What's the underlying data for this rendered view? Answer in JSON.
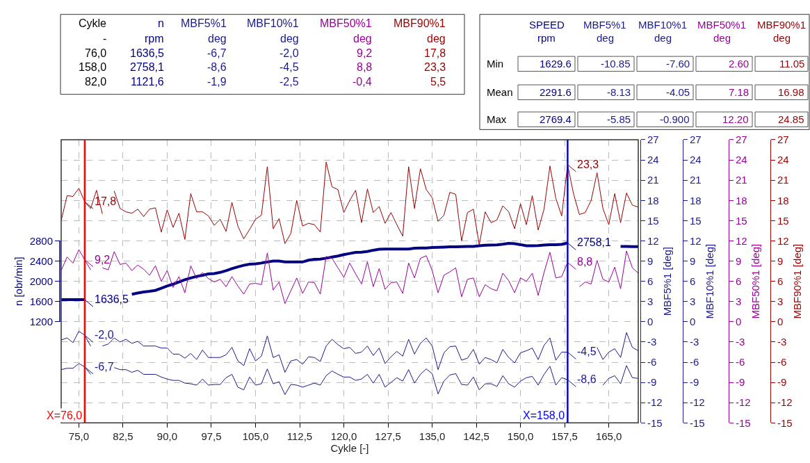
{
  "chart_data": {
    "type": "line",
    "x": [
      72,
      73,
      74,
      75,
      76,
      77,
      78,
      79,
      80,
      81,
      82,
      83,
      84,
      85,
      86,
      87,
      88,
      89,
      90,
      91,
      92,
      93,
      94,
      95,
      96,
      97,
      98,
      99,
      100,
      101,
      102,
      103,
      104,
      105,
      106,
      107,
      108,
      109,
      110,
      111,
      112,
      113,
      114,
      115,
      116,
      117,
      118,
      119,
      120,
      121,
      122,
      123,
      124,
      125,
      126,
      127,
      128,
      129,
      130,
      131,
      132,
      133,
      134,
      135,
      136,
      137,
      138,
      139,
      140,
      141,
      142,
      143,
      144,
      145,
      146,
      147,
      148,
      149,
      150,
      151,
      152,
      153,
      154,
      155,
      156,
      157,
      158,
      159,
      160,
      161,
      162,
      163,
      164,
      165,
      166,
      167,
      168,
      169,
      170
    ],
    "series": [
      {
        "axis": "y",
        "color": "#000080",
        "values": [
          1636.5,
          1636.5,
          1636.5,
          1636.5,
          1636.5,
          null,
          null,
          null,
          null,
          null,
          null,
          null,
          1745,
          1767,
          1789,
          1802,
          1820,
          1864,
          1908,
          1943,
          1987,
          2031,
          2066,
          2097,
          2119,
          2145,
          2154,
          2176,
          2210,
          2250,
          2286,
          2317,
          2339,
          2347,
          2361,
          2382,
          2400,
          2400,
          2382,
          2382,
          2382,
          2382,
          2418,
          2435,
          2440,
          2457,
          2479,
          2501,
          2528,
          2550,
          2572,
          2576,
          2589,
          2615,
          2633,
          2637,
          2637,
          2637,
          2637,
          2637,
          2655,
          2659,
          2659,
          2668,
          2672,
          2677,
          2681,
          2681,
          2685,
          2690,
          2690,
          2703,
          2712,
          2716,
          2721,
          2734,
          2752,
          2743,
          2725,
          2703,
          2703,
          2708,
          2716,
          2725,
          2725,
          2730,
          2758.1,
          null,
          null,
          null,
          null,
          null,
          null,
          null,
          null,
          2690,
          2690,
          2685,
          2685
        ],
        "value_labels": [
          null,
          null,
          null,
          null,
          "1636,5",
          null,
          null,
          null,
          null,
          null,
          null,
          null,
          null,
          null,
          null,
          null,
          null,
          null,
          null,
          null,
          null,
          null,
          null,
          null,
          null,
          null,
          null,
          null,
          null,
          null,
          null,
          null,
          null,
          null,
          null,
          null,
          null,
          null,
          null,
          null,
          null,
          null,
          null,
          null,
          null,
          null,
          null,
          null,
          null,
          null,
          null,
          null,
          null,
          null,
          null,
          null,
          null,
          null,
          null,
          null,
          null,
          null,
          null,
          null,
          null,
          null,
          null,
          null,
          null,
          null,
          null,
          null,
          null,
          null,
          null,
          null,
          null,
          null,
          null,
          null,
          null,
          null,
          null,
          null,
          null,
          null,
          "2758,1",
          null,
          null,
          null,
          null,
          null,
          null,
          null,
          null,
          null,
          null,
          null,
          null
        ]
      },
      {
        "axis": "y2",
        "color": "#1a1a8c",
        "values": [
          -7.1,
          -6.9,
          -6.9,
          -6.2,
          -6.7,
          -7.8,
          null,
          null,
          null,
          -6.8,
          -7.1,
          -7.1,
          -7.5,
          -7.2,
          -7.8,
          -7.8,
          -7.8,
          -8.2,
          -8.5,
          -8.7,
          -8.7,
          -9.1,
          -9.2,
          -9.4,
          -8.5,
          -9.4,
          -9.3,
          -9.3,
          -8.3,
          -7.8,
          -9.7,
          -10.1,
          -8.2,
          -9.4,
          -9.2,
          -7.0,
          -9.2,
          -8.9,
          -10.8,
          -9.3,
          -9.4,
          -9.7,
          -9.4,
          -9.1,
          -9.4,
          -8.0,
          -7.3,
          -7.8,
          -8.2,
          -8.2,
          -8.7,
          -8.5,
          -7.8,
          -9.1,
          -7.8,
          -9.7,
          -9.0,
          -8.3,
          -8.8,
          -7.1,
          -9.1,
          -7.8,
          -7.0,
          -7.7,
          -10.7,
          -8.8,
          -7.9,
          -7.7,
          -9.3,
          -9.4,
          -8.2,
          -10.1,
          -9.2,
          -9.2,
          -9.6,
          -8.0,
          -9.2,
          -9.7,
          -8.8,
          -8.3,
          -8.1,
          -9.4,
          -7.8,
          -6.6,
          -9.4,
          -8.3,
          -8.6,
          null,
          null,
          null,
          null,
          null,
          -9.4,
          -8.4,
          -8.0,
          -9.2,
          -6.5,
          -8.3,
          -8.4
        ],
        "value_labels": [
          null,
          null,
          null,
          null,
          "-6,7",
          null,
          null,
          null,
          null,
          null,
          null,
          null,
          null,
          null,
          null,
          null,
          null,
          null,
          null,
          null,
          null,
          null,
          null,
          null,
          null,
          null,
          null,
          null,
          null,
          null,
          null,
          null,
          null,
          null,
          null,
          null,
          null,
          null,
          null,
          null,
          null,
          null,
          null,
          null,
          null,
          null,
          null,
          null,
          null,
          null,
          null,
          null,
          null,
          null,
          null,
          null,
          null,
          null,
          null,
          null,
          null,
          null,
          null,
          null,
          null,
          null,
          null,
          null,
          null,
          null,
          null,
          null,
          null,
          null,
          null,
          null,
          null,
          null,
          null,
          null,
          null,
          null,
          null,
          null,
          null,
          null,
          "-8,6",
          null,
          null,
          null,
          null,
          null,
          null,
          null,
          null,
          null,
          null,
          null,
          null
        ]
      },
      {
        "axis": "y3",
        "color": "#1a1a8c",
        "values": [
          -2.7,
          -2.4,
          -3.1,
          -1.4,
          -2.0,
          -3.6,
          null,
          -3.6,
          -3.3,
          -2.4,
          -3.0,
          -2.6,
          -3.2,
          -2.9,
          -3.6,
          -3.6,
          -3.6,
          -3.9,
          -3.9,
          -4.8,
          -4.8,
          -5.4,
          -4.7,
          -5.6,
          -4.2,
          -5.3,
          -5.3,
          -5.3,
          -4.9,
          -3.8,
          -5.8,
          -6.5,
          -4.0,
          -5.8,
          -5.1,
          -2.1,
          -5.3,
          -4.9,
          -7.5,
          -5.8,
          -5.6,
          -6.3,
          -5.2,
          -5.3,
          -5.9,
          -3.6,
          -2.6,
          -3.4,
          -4.0,
          -3.8,
          -4.7,
          -4.5,
          -3.6,
          -5.0,
          -3.9,
          -6.2,
          -5.2,
          -4.4,
          -5.1,
          -2.6,
          -4.8,
          -3.2,
          -2.4,
          -3.6,
          -7.1,
          -4.6,
          -3.7,
          -3.6,
          -5.7,
          -5.4,
          -4.1,
          -6.3,
          -5.3,
          -5.6,
          -6.1,
          -4.1,
          -5.3,
          -6.1,
          -4.6,
          -4.3,
          -3.9,
          -5.6,
          -3.5,
          -2.4,
          -5.7,
          -4.5,
          -4.5,
          null,
          null,
          null,
          null,
          -3.8,
          -5.6,
          -4.5,
          -4.0,
          -5.3,
          -1.6,
          -3.8,
          -4.3
        ],
        "value_labels": [
          null,
          null,
          null,
          null,
          "-2,0",
          null,
          null,
          null,
          null,
          null,
          null,
          null,
          null,
          null,
          null,
          null,
          null,
          null,
          null,
          null,
          null,
          null,
          null,
          null,
          null,
          null,
          null,
          null,
          null,
          null,
          null,
          null,
          null,
          null,
          null,
          null,
          null,
          null,
          null,
          null,
          null,
          null,
          null,
          null,
          null,
          null,
          null,
          null,
          null,
          null,
          null,
          null,
          null,
          null,
          null,
          null,
          null,
          null,
          null,
          null,
          null,
          null,
          null,
          null,
          null,
          null,
          null,
          null,
          null,
          null,
          null,
          null,
          null,
          null,
          null,
          null,
          null,
          null,
          null,
          null,
          null,
          null,
          null,
          null,
          null,
          null,
          "-4,5",
          null,
          null,
          null,
          null,
          null,
          null,
          null,
          null,
          null,
          null,
          null,
          null
        ]
      },
      {
        "axis": "y3",
        "color": "#990099",
        "values": [
          7.6,
          9.6,
          8.7,
          10.7,
          9.2,
          7.7,
          null,
          8.0,
          7.7,
          10.4,
          8.5,
          8.7,
          7.6,
          8.4,
          7.8,
          6.9,
          8.3,
          6.0,
          7.6,
          5.1,
          6.7,
          4.3,
          8.3,
          6.4,
          7.3,
          6.4,
          5.9,
          6.3,
          5.2,
          6.7,
          5.3,
          4.1,
          5.6,
          5.7,
          5.5,
          10.2,
          4.7,
          5.9,
          2.7,
          4.6,
          6.5,
          4.2,
          5.9,
          5.8,
          4.1,
          9.7,
          9.4,
          8.0,
          6.6,
          8.7,
          7.1,
          5.6,
          8.9,
          5.2,
          7.9,
          4.8,
          5.8,
          5.9,
          4.2,
          8.7,
          6.5,
          9.4,
          9.8,
          7.6,
          4.3,
          6.9,
          7.4,
          8.0,
          3.7,
          6.3,
          6.5,
          3.7,
          5.5,
          4.9,
          4.6,
          7.2,
          6.1,
          4.3,
          6.5,
          6.0,
          7.2,
          3.9,
          7.3,
          10.3,
          6.5,
          6.7,
          8.8,
          null,
          5.2,
          5.9,
          5.6,
          9.1,
          6.3,
          5.9,
          8.1,
          4.9,
          10.5,
          8.0,
          7.2
        ],
        "value_labels": [
          null,
          null,
          null,
          null,
          "9,2",
          null,
          null,
          null,
          null,
          null,
          null,
          null,
          null,
          null,
          null,
          null,
          null,
          null,
          null,
          null,
          null,
          null,
          null,
          null,
          null,
          null,
          null,
          null,
          null,
          null,
          null,
          null,
          null,
          null,
          null,
          null,
          null,
          null,
          null,
          null,
          null,
          null,
          null,
          null,
          null,
          null,
          null,
          null,
          null,
          null,
          null,
          null,
          null,
          null,
          null,
          null,
          null,
          null,
          null,
          null,
          null,
          null,
          null,
          null,
          null,
          null,
          null,
          null,
          null,
          null,
          null,
          null,
          null,
          null,
          null,
          null,
          null,
          null,
          null,
          null,
          null,
          null,
          null,
          null,
          null,
          null,
          "8,8",
          null,
          null,
          null,
          null,
          null,
          null,
          null,
          null,
          null,
          null,
          null,
          null
        ]
      },
      {
        "axis": "y3",
        "color": "#990000",
        "values": [
          15.0,
          18.7,
          18.6,
          19.8,
          17.8,
          16.8,
          19.5,
          16.0,
          null,
          19.4,
          16.8,
          16.3,
          16.1,
          16.7,
          15.6,
          16.7,
          16.9,
          13.3,
          16.6,
          14.0,
          16.1,
          12.2,
          19.0,
          16.3,
          16.3,
          15.7,
          14.3,
          15.2,
          13.4,
          17.7,
          14.2,
          12.3,
          13.7,
          15.2,
          15.8,
          23.0,
          13.8,
          15.3,
          11.6,
          13.1,
          18.0,
          14.2,
          14.6,
          14.4,
          13.3,
          23.7,
          20.0,
          19.6,
          16.2,
          18.0,
          19.5,
          14.7,
          19.7,
          16.2,
          17.1,
          14.6,
          16.2,
          14.4,
          12.7,
          23.0,
          16.8,
          22.7,
          19.6,
          18.4,
          14.9,
          15.8,
          19.2,
          18.9,
          12.0,
          16.2,
          16.7,
          11.4,
          16.3,
          14.7,
          15.1,
          17.2,
          16.3,
          13.8,
          17.5,
          14.4,
          18.7,
          13.6,
          16.7,
          23.1,
          18.3,
          15.7,
          23.3,
          19.0,
          15.9,
          16.2,
          18.0,
          22.1,
          16.8,
          14.4,
          19.0,
          14.7,
          19.1,
          17.3,
          17.0
        ],
        "value_labels": [
          null,
          null,
          null,
          null,
          "17,8",
          null,
          null,
          null,
          null,
          null,
          null,
          null,
          null,
          null,
          null,
          null,
          null,
          null,
          null,
          null,
          null,
          null,
          null,
          null,
          null,
          null,
          null,
          null,
          null,
          null,
          null,
          null,
          null,
          null,
          null,
          null,
          null,
          null,
          null,
          null,
          null,
          null,
          null,
          null,
          null,
          null,
          null,
          null,
          null,
          null,
          null,
          null,
          null,
          null,
          null,
          null,
          null,
          null,
          null,
          null,
          null,
          null,
          null,
          null,
          null,
          null,
          null,
          null,
          null,
          null,
          null,
          null,
          null,
          null,
          null,
          null,
          null,
          null,
          null,
          null,
          null,
          null,
          null,
          null,
          null,
          null,
          "23,3",
          null,
          null,
          null,
          null,
          null,
          null,
          null,
          null,
          null,
          null,
          null,
          null
        ]
      }
    ],
    "xlabel": "Cykle [-]",
    "xlim": [
      72,
      170
    ],
    "xticks": [
      {
        "value": 75,
        "label": "75,0"
      },
      {
        "value": 82.5,
        "label": "82,5"
      },
      {
        "value": 90,
        "label": "90,0"
      },
      {
        "value": 97.5,
        "label": "97,5"
      },
      {
        "value": 105,
        "label": "105,0"
      },
      {
        "value": 112.5,
        "label": "112,5"
      },
      {
        "value": 120,
        "label": "120,0"
      },
      {
        "value": 127.5,
        "label": "127,5"
      },
      {
        "value": 135,
        "label": "135,0"
      },
      {
        "value": 142.5,
        "label": "142,5"
      },
      {
        "value": 150,
        "label": "150,0"
      },
      {
        "value": 157.5,
        "label": "157,5"
      },
      {
        "value": 165,
        "label": "165,0"
      }
    ],
    "ylabel": "n [obr/min]",
    "ylim": [
      -800,
      4800
    ],
    "yticks": [
      1200,
      1600,
      2000,
      2400,
      2800
    ],
    "y2label": "MBF5%1 [deg]",
    "y2lim": [
      -15,
      27
    ],
    "y2ticks": [
      -15,
      -12,
      -9,
      -6,
      -3,
      0,
      3,
      6,
      9,
      12,
      15,
      18,
      21,
      24,
      27
    ],
    "y3label": "MBF10%1 [deg]",
    "y3lim": [
      -15,
      27
    ],
    "y3ticks": [
      -15,
      -12,
      -9,
      -6,
      -3,
      0,
      3,
      6,
      9,
      12,
      15,
      18,
      21,
      24,
      27
    ],
    "ref_lines": [
      {
        "axis": "x",
        "value": 76,
        "label": "X=76,0",
        "color": "#ff0000"
      },
      {
        "axis": "x",
        "value": 158,
        "label": "X=158,0",
        "color": "#0000ff"
      }
    ],
    "grid": true,
    "marker": "none",
    "line_style": "solid",
    "annotations": [
      "Cykle",
      "n",
      "MBF5%1",
      "MBF10%1",
      "MBF50%1",
      "MBF90%1",
      "-",
      "rpm",
      "deg",
      "deg",
      "deg",
      "deg",
      "76,0",
      "1636,5",
      "-6,7",
      "-2,0",
      "9,2",
      "17,8",
      "158,0",
      "2758,1",
      "-8,6",
      "-4,5",
      "8,8",
      "23,3",
      "82,0",
      "1121,6",
      "-1,9",
      "-2,5",
      "-0,4",
      "5,5",
      "SPEED",
      "MBF5%1",
      "MBF10%1",
      "MBF50%1",
      "MBF90%1",
      "rpm",
      "deg",
      "deg",
      "deg",
      "deg",
      "Min",
      "1629.6",
      "-10.85",
      "-7.60",
      "2.60",
      "11.05",
      "Mean",
      "2291.6",
      "-8.13",
      "-4.05",
      "7.18",
      "16.98",
      "Max",
      "2769.4",
      "-5.85",
      "-0.900",
      "12.20",
      "24.85",
      "MBF50%1 [deg]",
      "MBF90%1 [deg]",
      "-15",
      "-12",
      "-9",
      "-6",
      "-3",
      "0",
      "3",
      "6",
      "9",
      "12",
      "15",
      "18",
      "21",
      "24",
      "27",
      "-15",
      "-12",
      "-9",
      "-6",
      "-3",
      "0",
      "3",
      "6",
      "9",
      "12",
      "15",
      "18",
      "21",
      "24",
      "27"
    ]
  }
}
